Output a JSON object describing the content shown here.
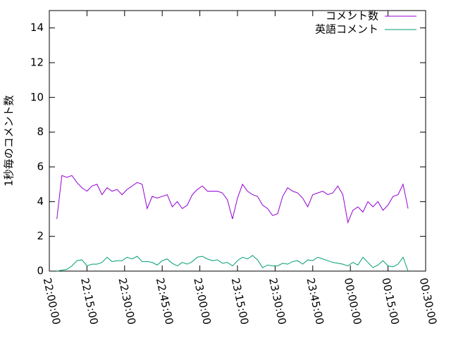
{
  "chart_data": {
    "type": "line",
    "ylabel": "1秒毎のコメント数",
    "x": [
      "22:03:00",
      "22:05:00",
      "22:07:00",
      "22:09:00",
      "22:11:00",
      "22:13:00",
      "22:15:00",
      "22:17:00",
      "22:19:00",
      "22:21:00",
      "22:23:00",
      "22:25:00",
      "22:27:00",
      "22:29:00",
      "22:31:00",
      "22:33:00",
      "22:35:00",
      "22:37:00",
      "22:39:00",
      "22:41:00",
      "22:43:00",
      "22:45:00",
      "22:47:00",
      "22:49:00",
      "22:51:00",
      "22:53:00",
      "22:55:00",
      "22:57:00",
      "22:59:00",
      "23:01:00",
      "23:03:00",
      "23:05:00",
      "23:07:00",
      "23:09:00",
      "23:11:00",
      "23:13:00",
      "23:15:00",
      "23:17:00",
      "23:19:00",
      "23:21:00",
      "23:23:00",
      "23:25:00",
      "23:27:00",
      "23:29:00",
      "23:31:00",
      "23:33:00",
      "23:35:00",
      "23:37:00",
      "23:39:00",
      "23:41:00",
      "23:43:00",
      "23:45:00",
      "23:47:00",
      "23:49:00",
      "23:51:00",
      "23:53:00",
      "23:55:00",
      "23:57:00",
      "23:59:00",
      "00:01:00",
      "00:03:00",
      "00:05:00",
      "00:07:00",
      "00:09:00",
      "00:11:00",
      "00:13:00",
      "00:15:00",
      "00:17:00",
      "00:19:00",
      "00:21:00",
      "00:23:00"
    ],
    "series": [
      {
        "name": "コメント数",
        "color": "#9400d3",
        "values": [
          3.0,
          5.5,
          5.4,
          5.5,
          5.1,
          4.8,
          4.6,
          4.9,
          5.0,
          4.4,
          4.8,
          4.6,
          4.7,
          4.4,
          4.7,
          4.9,
          5.1,
          5.0,
          3.6,
          4.3,
          4.2,
          4.3,
          4.4,
          3.7,
          4.0,
          3.6,
          3.8,
          4.4,
          4.7,
          4.9,
          4.6,
          4.6,
          4.6,
          4.5,
          4.1,
          3.0,
          4.2,
          5.0,
          4.6,
          4.4,
          4.3,
          3.8,
          3.6,
          3.2,
          3.3,
          4.3,
          4.8,
          4.6,
          4.5,
          4.2,
          3.7,
          4.4,
          4.5,
          4.6,
          4.4,
          4.5,
          4.9,
          4.4,
          2.8,
          3.5,
          3.7,
          3.4,
          4.0,
          3.7,
          4.0,
          3.5,
          3.8,
          4.3,
          4.4,
          5.0,
          3.6
        ]
      },
      {
        "name": "英語コメント",
        "color": "#009e73",
        "values": [
          0.0,
          0.05,
          0.1,
          0.3,
          0.6,
          0.65,
          0.3,
          0.4,
          0.4,
          0.5,
          0.8,
          0.55,
          0.6,
          0.6,
          0.8,
          0.7,
          0.85,
          0.55,
          0.55,
          0.5,
          0.35,
          0.6,
          0.7,
          0.45,
          0.3,
          0.5,
          0.4,
          0.55,
          0.8,
          0.85,
          0.7,
          0.6,
          0.65,
          0.45,
          0.5,
          0.3,
          0.6,
          0.8,
          0.7,
          0.9,
          0.65,
          0.2,
          0.35,
          0.3,
          0.3,
          0.45,
          0.4,
          0.55,
          0.6,
          0.4,
          0.65,
          0.6,
          0.8,
          0.7,
          0.6,
          0.5,
          0.45,
          0.4,
          0.3,
          0.5,
          0.35,
          0.8,
          0.5,
          0.2,
          0.35,
          0.6,
          0.3,
          0.25,
          0.4,
          0.8,
          0.0
        ]
      }
    ],
    "xlim": [
      "22:00:00",
      "00:30:00"
    ],
    "xticks": [
      "22:00:00",
      "22:15:00",
      "22:30:00",
      "22:45:00",
      "23:00:00",
      "23:15:00",
      "23:30:00",
      "23:45:00",
      "00:00:00",
      "00:15:00",
      "00:30:00"
    ],
    "ylim": [
      0,
      15
    ],
    "yticks": [
      0,
      2,
      4,
      6,
      8,
      10,
      12,
      14
    ],
    "legend": "top-right",
    "grid": false
  }
}
